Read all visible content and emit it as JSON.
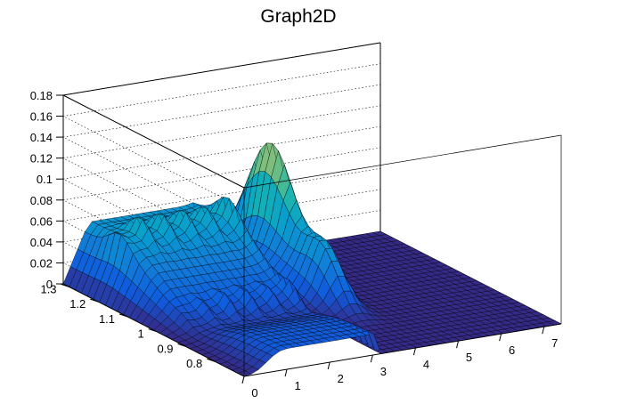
{
  "chart_data": {
    "type": "surface3d",
    "title": "Graph2D",
    "xlabel": "",
    "ylabel": "",
    "zlabel": "",
    "x_range": [
      0,
      7.4
    ],
    "y_range": [
      0.7,
      1.32
    ],
    "z_range": [
      0,
      0.18
    ],
    "x_ticks": [
      "0",
      "1",
      "2",
      "3",
      "4",
      "5",
      "6",
      "7"
    ],
    "y_ticks": [
      "0.8",
      "0.9",
      "1",
      "1.1",
      "1.2",
      "1.3"
    ],
    "z_ticks": [
      "0",
      "0.02",
      "0.04",
      "0.06",
      "0.08",
      "0.1",
      "0.12",
      "0.14",
      "0.16",
      "0.18"
    ],
    "grid": true,
    "palette": "kBird",
    "surface_features": {
      "main_ridge_peak": {
        "x": 4.1,
        "y": 1.2,
        "z": 0.178
      },
      "secondary_ridge_peak": {
        "x": 3.9,
        "y": 0.95,
        "z": 0.09
      },
      "plateau_level": 0.055,
      "front_edge_level": 0.02
    }
  }
}
